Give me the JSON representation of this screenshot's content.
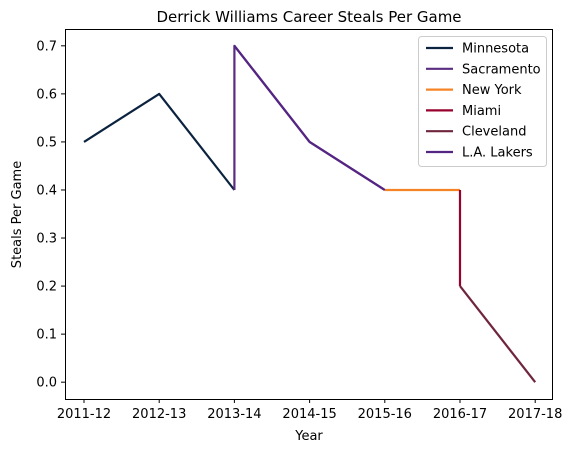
{
  "chart_data": {
    "type": "line",
    "title": "Derrick Williams  Career Steals Per Game",
    "xlabel": "Year",
    "ylabel": "Steals Per Game",
    "categories": [
      "2011-12",
      "2012-13",
      "2013-14",
      "2014-15",
      "2015-16",
      "2016-17",
      "2017-18"
    ],
    "y_ticks": [
      "0.0",
      "0.1",
      "0.2",
      "0.3",
      "0.4",
      "0.5",
      "0.6",
      "0.7"
    ],
    "ylim": [
      -0.035,
      0.735
    ],
    "grid": false,
    "legend_position": "top-right",
    "series": [
      {
        "name": "Minnesota",
        "color": "#0c2340",
        "points": [
          [
            "2011-12",
            0.5
          ],
          [
            "2012-13",
            0.6
          ],
          [
            "2013-14",
            0.4
          ]
        ]
      },
      {
        "name": "Sacramento",
        "color": "#5a2d81",
        "points": [
          [
            "2013-14",
            0.4
          ],
          [
            "2013-14",
            0.7
          ],
          [
            "2014-15",
            0.5
          ],
          [
            "2015-16",
            0.4
          ]
        ]
      },
      {
        "name": "New York",
        "color": "#f58426",
        "points": [
          [
            "2015-16",
            0.4
          ],
          [
            "2016-17",
            0.4
          ]
        ]
      },
      {
        "name": "Miami",
        "color": "#98002e",
        "points": [
          [
            "2016-17",
            0.4
          ],
          [
            "2016-17",
            0.2
          ]
        ]
      },
      {
        "name": "Cleveland",
        "color": "#6f263d",
        "points": [
          [
            "2016-17",
            0.2
          ],
          [
            "2017-18",
            0.0
          ]
        ]
      },
      {
        "name": "L.A. Lakers",
        "color": "#552583",
        "points": [
          [
            "2013-14",
            0.7
          ],
          [
            "2014-15",
            0.5
          ],
          [
            "2015-16",
            0.4
          ]
        ]
      }
    ]
  }
}
